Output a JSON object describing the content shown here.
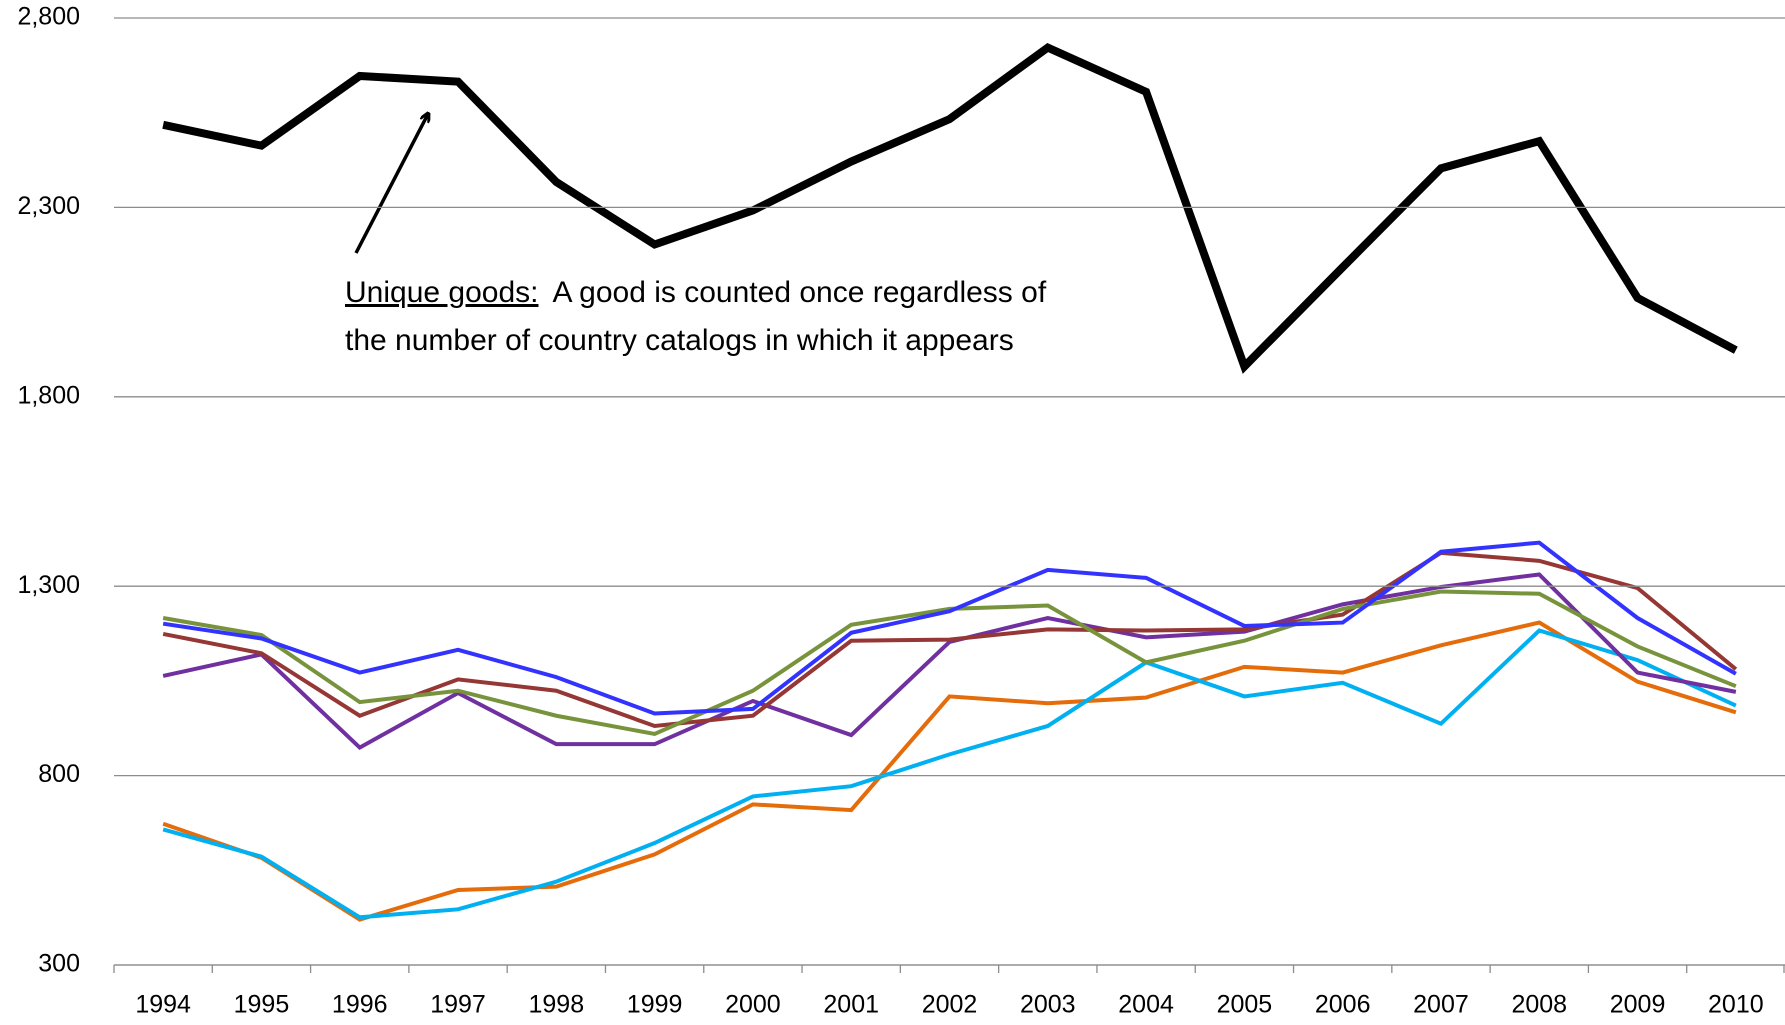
{
  "chart_data": {
    "type": "line",
    "categories": [
      "1994",
      "1995",
      "1996",
      "1997",
      "1998",
      "1999",
      "2000",
      "2001",
      "2002",
      "2003",
      "2004",
      "2005",
      "2006",
      "2007",
      "2008",
      "2009",
      "2010"
    ],
    "series": [
      {
        "color": "#000000",
        "width": 8,
        "values": [
          2518,
          2463,
          2647,
          2632,
          2367,
          2202,
          2292,
          2421,
          2533,
          2722,
          2605,
          1880,
          2142,
          2403,
          2475,
          2061,
          1923
        ]
      },
      {
        "color": "#3333ff",
        "width": 4,
        "values": [
          1201,
          1162,
          1072,
          1132,
          1060,
          964,
          976,
          1177,
          1234,
          1343,
          1322,
          1195,
          1204,
          1391,
          1415,
          1216,
          1069
        ]
      },
      {
        "color": "#77933c",
        "width": 4,
        "values": [
          1216,
          1171,
          994,
          1024,
          958,
          910,
          1024,
          1198,
          1240,
          1249,
          1099,
          1156,
          1240,
          1286,
          1280,
          1141,
          1036
        ]
      },
      {
        "color": "#953735",
        "width": 4,
        "values": [
          1174,
          1123,
          958,
          1054,
          1024,
          931,
          958,
          1156,
          1159,
          1186,
          1183,
          1186,
          1225,
          1388,
          1367,
          1295,
          1081
        ]
      },
      {
        "color": "#7030a0",
        "width": 4,
        "values": [
          1063,
          1120,
          874,
          1018,
          883,
          883,
          997,
          907,
          1153,
          1216,
          1165,
          1180,
          1252,
          1298,
          1331,
          1072,
          1021
        ]
      },
      {
        "color": "#00b0f0",
        "width": 4,
        "values": [
          658,
          586,
          426,
          447,
          520,
          622,
          745,
          772,
          856,
          931,
          1099,
          1009,
          1045,
          937,
          1183,
          1105,
          985
        ]
      },
      {
        "color": "#e46c0a",
        "width": 4,
        "values": [
          673,
          583,
          420,
          498,
          507,
          592,
          724,
          709,
          1009,
          991,
          1006,
          1087,
          1072,
          1144,
          1204,
          1048,
          967
        ]
      }
    ],
    "ylim": [
      300,
      2800
    ],
    "yticks": [
      {
        "value": 300,
        "label": "300"
      },
      {
        "value": 800,
        "label": "800"
      },
      {
        "value": 1300,
        "label": "1,300"
      },
      {
        "value": 1800,
        "label": "1,800"
      },
      {
        "value": 2300,
        "label": "2,300"
      },
      {
        "value": 2800,
        "label": "2,800"
      }
    ],
    "grid": true,
    "annotation": {
      "label": "Unique goods:",
      "lines": [
        "A good is counted once regardless of",
        "the number of country catalogs in which it appears"
      ]
    }
  }
}
